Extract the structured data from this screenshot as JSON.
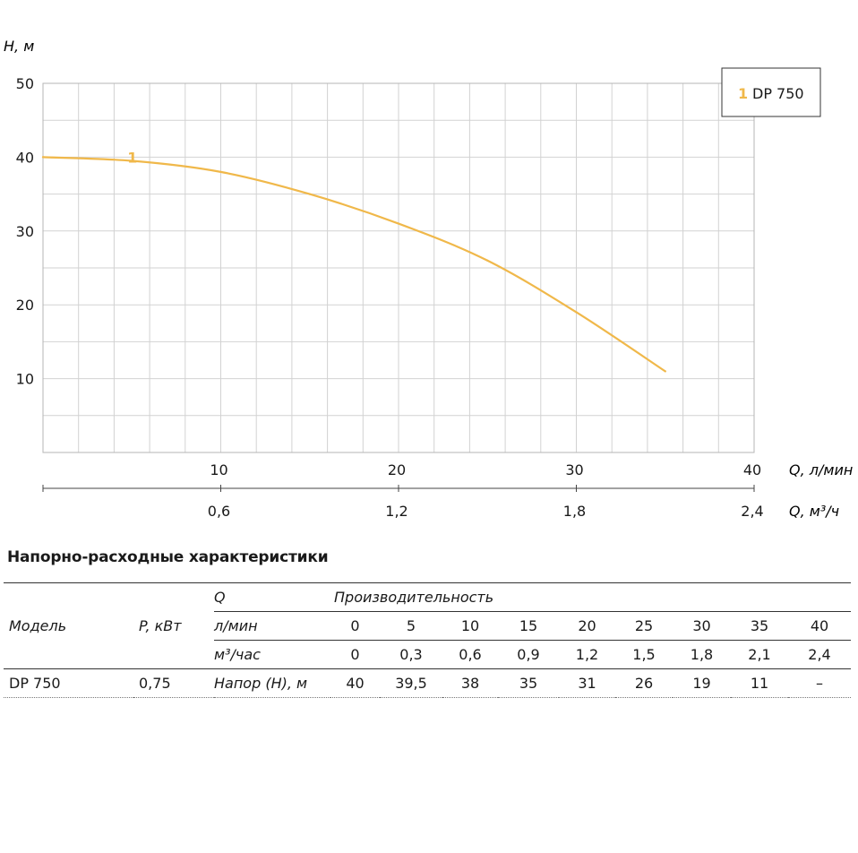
{
  "chart_data": {
    "type": "line",
    "y_axis_label": "H, м",
    "y_ticks": [
      "10",
      "20",
      "30",
      "40",
      "50"
    ],
    "ylim": [
      0,
      50
    ],
    "x_axis_label": "Q, л/мин",
    "x_ticks": [
      "10",
      "20",
      "30",
      "40"
    ],
    "xlim": [
      0,
      40
    ],
    "x2_axis_label": "Q, м³/ч",
    "x2_ticks": [
      "0,6",
      "1,2",
      "1,8",
      "2,4"
    ],
    "x2lim": [
      0,
      2.4
    ],
    "grid": true,
    "legend_position": "top-right",
    "series": [
      {
        "name": "DP 750",
        "marker": "1",
        "color": "#f0b84a",
        "x": [
          0,
          5,
          10,
          15,
          20,
          25,
          30,
          35
        ],
        "y": [
          40,
          39.5,
          38,
          35,
          31,
          26,
          19,
          11
        ]
      }
    ]
  },
  "section_title": "Напорно-расходные характеристики",
  "table": {
    "model_header": "Модель",
    "power_header": "P, кВт",
    "q_label": "Q",
    "productivity_label": "Производительность",
    "lmin_label": "л/мин",
    "lmin_values": [
      "0",
      "5",
      "10",
      "15",
      "20",
      "25",
      "30",
      "35",
      "40"
    ],
    "m3_label": "м³/час",
    "m3_values": [
      "0",
      "0,3",
      "0,6",
      "0,9",
      "1,2",
      "1,5",
      "1,8",
      "2,1",
      "2,4"
    ],
    "model": "DP 750",
    "power": "0,75",
    "head_label": "Напор (H), м",
    "head_values": [
      "40",
      "39,5",
      "38",
      "35",
      "31",
      "26",
      "19",
      "11",
      "–"
    ]
  }
}
